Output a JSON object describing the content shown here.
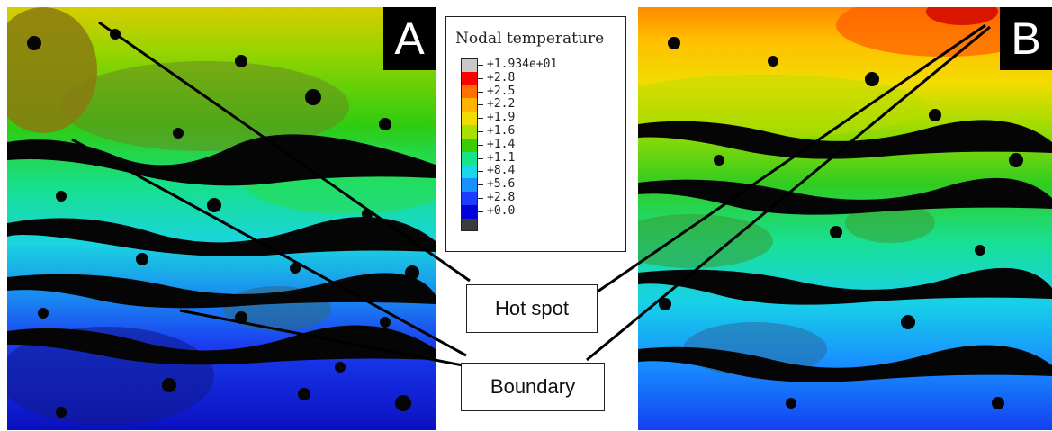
{
  "panels": [
    {
      "id": "A",
      "label": "A"
    },
    {
      "id": "B",
      "label": "B"
    }
  ],
  "legend": {
    "title": "Nodal temperature",
    "items": [
      {
        "label": "+1.934e+01",
        "color": "#c8c8c8"
      },
      {
        "label": "+2.8",
        "color": "#ff0000"
      },
      {
        "label": "+2.5",
        "color": "#ff7000"
      },
      {
        "label": "+2.2",
        "color": "#ffb400"
      },
      {
        "label": "+1.9",
        "color": "#f2dc00"
      },
      {
        "label": "+1.6",
        "color": "#a8e000"
      },
      {
        "label": "+1.4",
        "color": "#3ccc00"
      },
      {
        "label": "+1.1",
        "color": "#16e48a"
      },
      {
        "label": "+8.4",
        "color": "#18d8e8"
      },
      {
        "label": "+5.6",
        "color": "#1890ff"
      },
      {
        "label": "+2.8",
        "color": "#1c3cff"
      },
      {
        "label": "+0.0",
        "color": "#0000d8"
      },
      {
        "label": "",
        "color": "#3c3c3c"
      }
    ]
  },
  "callouts": {
    "hot_spot": "Hot spot",
    "boundary": "Boundary"
  },
  "colors": {
    "line": "#000000",
    "pores": "#050505"
  }
}
